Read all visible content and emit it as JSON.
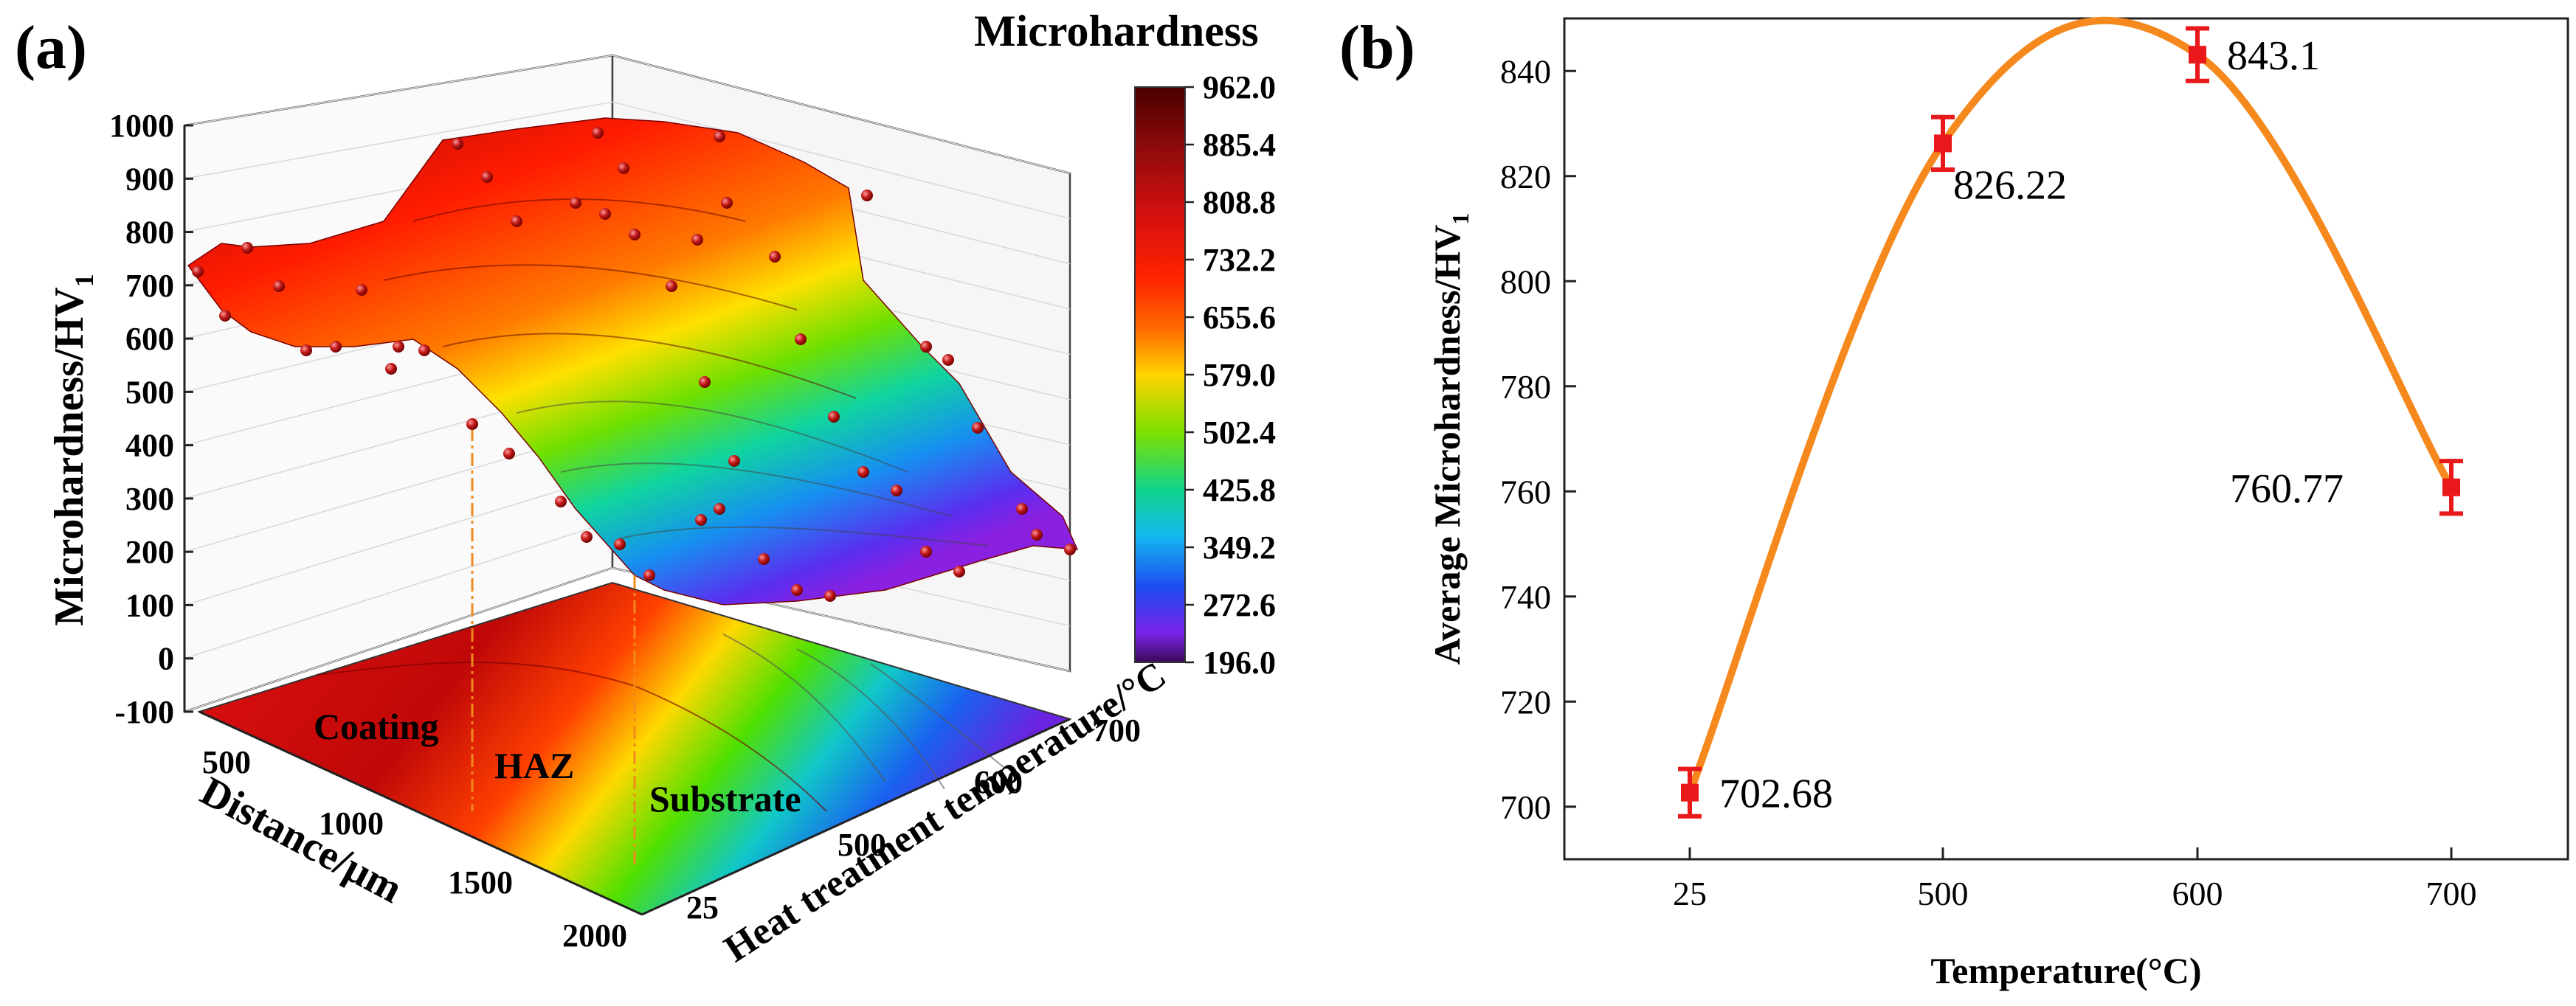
{
  "panel_a": {
    "label": "(a)",
    "colorbar": {
      "title": "Microhardness",
      "ticks": [
        "962.0",
        "885.4",
        "808.8",
        "732.2",
        "655.6",
        "579.0",
        "502.4",
        "425.8",
        "349.2",
        "272.6",
        "196.0"
      ]
    },
    "z_axis_label": "Microhardness/HV",
    "z_axis_label_sub": "1",
    "z_ticks": [
      "1000",
      "900",
      "800",
      "700",
      "600",
      "500",
      "400",
      "300",
      "200",
      "100",
      "0",
      "-100"
    ],
    "x_axis_label": "Distance/μm",
    "x_ticks": [
      "500",
      "1000",
      "1500",
      "2000"
    ],
    "y_axis_label": "Heat treatment temperature/°C",
    "y_ticks": [
      "700",
      "600",
      "500",
      "25"
    ],
    "regions": [
      "Coating",
      "HAZ",
      "Substrate"
    ]
  },
  "panel_b": {
    "label": "(b)",
    "xlabel": "Temperature(°C)",
    "ylabel_prefix": "Average  Microhardness/HV",
    "ylabel_sub": "1",
    "ytick_labels": [
      "700",
      "720",
      "740",
      "760",
      "780",
      "800",
      "820",
      "840"
    ],
    "data_labels": [
      "702.68",
      "826.22",
      "843.1",
      "760.77"
    ]
  },
  "chart_data": [
    {
      "type": "surface3d",
      "zlim": [
        -100,
        1000
      ],
      "color_range": [
        196.0,
        962.0
      ],
      "x_ticks": [
        500,
        1000,
        1500,
        2000
      ],
      "y_ticks": [
        "25",
        "500",
        "600",
        "700"
      ]
    },
    {
      "type": "line",
      "categories": [
        "25",
        "500",
        "600",
        "700"
      ],
      "values": [
        702.68,
        826.22,
        843.1,
        760.77
      ],
      "error": [
        4.5,
        5,
        5,
        5
      ],
      "ylim": [
        690,
        850
      ],
      "line_color": "#f5891e",
      "marker_color": "#e8181b"
    }
  ]
}
